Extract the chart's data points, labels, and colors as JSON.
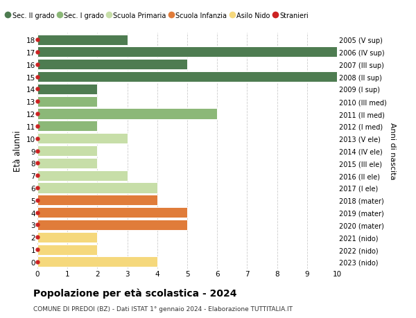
{
  "ages": [
    18,
    17,
    16,
    15,
    14,
    13,
    12,
    11,
    10,
    9,
    8,
    7,
    6,
    5,
    4,
    3,
    2,
    1,
    0
  ],
  "labels_right": [
    "2005 (V sup)",
    "2006 (IV sup)",
    "2007 (III sup)",
    "2008 (II sup)",
    "2009 (I sup)",
    "2010 (III med)",
    "2011 (II med)",
    "2012 (I med)",
    "2013 (V ele)",
    "2014 (IV ele)",
    "2015 (III ele)",
    "2016 (II ele)",
    "2017 (I ele)",
    "2018 (mater)",
    "2019 (mater)",
    "2020 (mater)",
    "2021 (nido)",
    "2022 (nido)",
    "2023 (nido)"
  ],
  "values": [
    3,
    10,
    5,
    10,
    2,
    2,
    6,
    2,
    3,
    2,
    2,
    3,
    4,
    4,
    5,
    5,
    2,
    2,
    4
  ],
  "school_types": [
    "sup",
    "sup",
    "sup",
    "sup",
    "sup",
    "med",
    "med",
    "med",
    "ele",
    "ele",
    "ele",
    "ele",
    "ele",
    "mat",
    "mat",
    "mat",
    "nido",
    "nido",
    "nido"
  ],
  "colors": {
    "sup": "#4e7c51",
    "med": "#8cb878",
    "ele": "#c7dea8",
    "mat": "#e07c3a",
    "nido": "#f5d87c"
  },
  "stranieri_color": "#cc2222",
  "legend_labels": [
    "Sec. II grado",
    "Sec. I grado",
    "Scuola Primaria",
    "Scuola Infanzia",
    "Asilo Nido",
    "Stranieri"
  ],
  "legend_colors": [
    "#4e7c51",
    "#8cb878",
    "#c7dea8",
    "#e07c3a",
    "#f5d87c",
    "#cc2222"
  ],
  "title": "Popolazione per età scolastica - 2024",
  "subtitle": "COMUNE DI PREDOI (BZ) - Dati ISTAT 1° gennaio 2024 - Elaborazione TUTTITALIA.IT",
  "ylabel_left": "Età alunni",
  "ylabel_right": "Anni di nascita",
  "xlim": [
    0,
    10
  ],
  "bar_height": 0.85
}
